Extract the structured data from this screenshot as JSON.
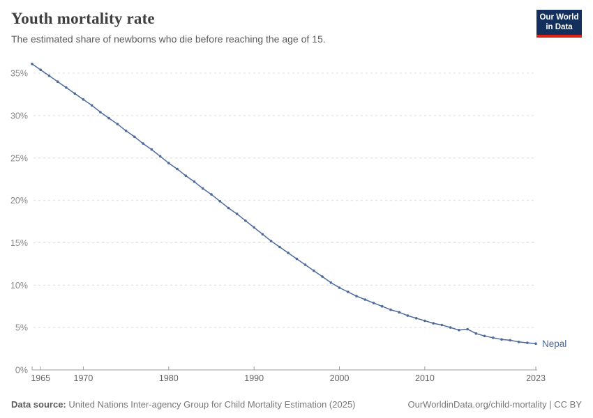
{
  "header": {
    "title": "Youth mortality rate",
    "subtitle": "The estimated share of newborns who die before reaching the age of 15.",
    "logo": {
      "line1": "Our World",
      "line2": "in Data"
    }
  },
  "chart_data": {
    "type": "line",
    "title": "Youth mortality rate",
    "entity": "Nepal",
    "unit": "%",
    "grid": "horizontal-dashed",
    "legend_position": "end-of-line-label",
    "ylim": [
      0,
      36.5
    ],
    "yticks": [
      0,
      5,
      10,
      15,
      20,
      25,
      30,
      35
    ],
    "ytick_suffix": "%",
    "xticks": [
      1965,
      1970,
      1980,
      1990,
      2000,
      2010,
      2023
    ],
    "x": [
      1964,
      1965,
      1966,
      1967,
      1968,
      1969,
      1970,
      1971,
      1972,
      1973,
      1974,
      1975,
      1976,
      1977,
      1978,
      1979,
      1980,
      1981,
      1982,
      1983,
      1984,
      1985,
      1986,
      1987,
      1988,
      1989,
      1990,
      1991,
      1992,
      1993,
      1994,
      1995,
      1996,
      1997,
      1998,
      1999,
      2000,
      2001,
      2002,
      2003,
      2004,
      2005,
      2006,
      2007,
      2008,
      2009,
      2010,
      2011,
      2012,
      2013,
      2014,
      2015,
      2016,
      2017,
      2018,
      2019,
      2020,
      2021,
      2022,
      2023
    ],
    "series": [
      {
        "name": "Nepal",
        "color": "#4C6A9C",
        "values": [
          36.1,
          35.4,
          34.7,
          34.0,
          33.3,
          32.6,
          31.9,
          31.2,
          30.4,
          29.7,
          29.0,
          28.2,
          27.5,
          26.7,
          26.0,
          25.2,
          24.4,
          23.7,
          22.9,
          22.2,
          21.4,
          20.7,
          19.9,
          19.1,
          18.4,
          17.6,
          16.8,
          16.0,
          15.2,
          14.5,
          13.8,
          13.1,
          12.4,
          11.7,
          11.0,
          10.3,
          9.7,
          9.2,
          8.7,
          8.3,
          7.9,
          7.5,
          7.1,
          6.8,
          6.4,
          6.1,
          5.8,
          5.5,
          5.3,
          5.0,
          4.7,
          4.8,
          4.3,
          4.0,
          3.8,
          3.6,
          3.5,
          3.3,
          3.2,
          3.1
        ]
      }
    ]
  },
  "footer": {
    "source_label": "Data source:",
    "source_text": "United Nations Inter-agency Group for Child Mortality Estimation (2025)",
    "link_text": "OurWorldinData.org/child-mortality | CC BY"
  },
  "colors": {
    "line": "#4C6A9C",
    "gridline": "#dcdcdc",
    "axis": "#9e9e9e",
    "ytick_text": "#878787",
    "xtick_text": "#636363",
    "logo_bg": "#12305b",
    "logo_red": "#dc2516"
  }
}
